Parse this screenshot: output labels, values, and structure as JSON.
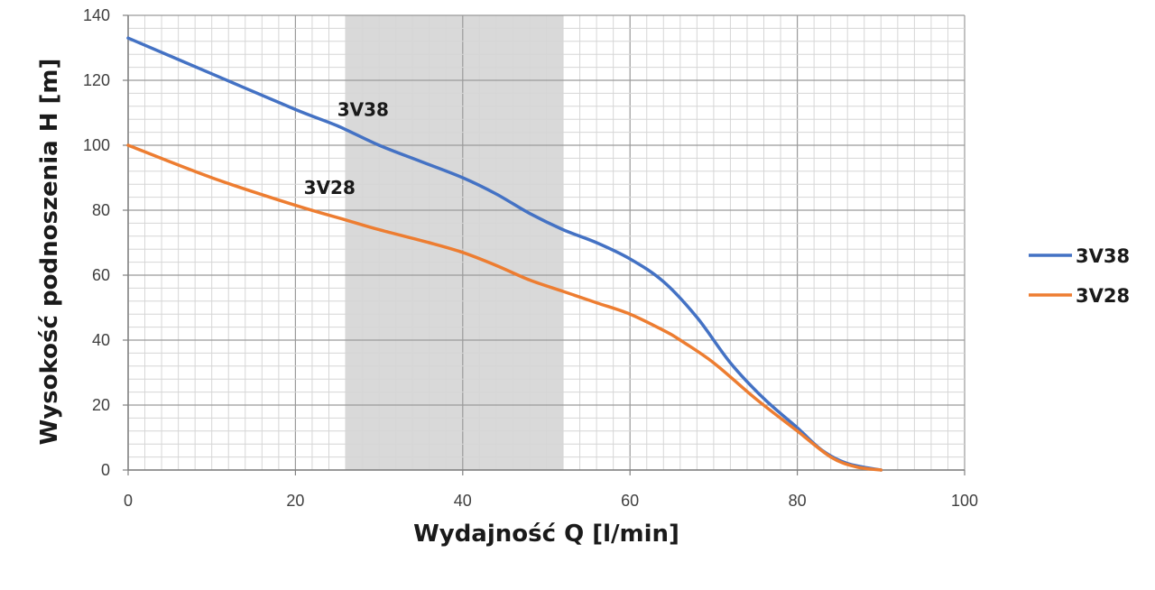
{
  "chart_data": {
    "type": "line",
    "xlabel": "Wydajność Q [l/min]",
    "ylabel": "Wysokość podnoszenia H [m]",
    "xlim": [
      0,
      100
    ],
    "ylim": [
      0,
      140
    ],
    "x_ticks": [
      "0",
      "20",
      "40",
      "60",
      "80",
      "100"
    ],
    "y_ticks": [
      "0",
      "20",
      "40",
      "60",
      "80",
      "100",
      "120",
      "140"
    ],
    "grid": true,
    "legend_position": "right",
    "highlight_band": {
      "x_from": 26,
      "x_to": 52,
      "color": "#d9d9d9"
    },
    "series": [
      {
        "name": "3V38",
        "color": "#4472c4",
        "label_at": [
          25,
          109
        ],
        "points": [
          [
            0,
            133
          ],
          [
            10,
            122
          ],
          [
            20,
            111
          ],
          [
            25,
            106
          ],
          [
            30,
            100
          ],
          [
            35,
            95
          ],
          [
            40,
            90
          ],
          [
            44,
            85
          ],
          [
            48,
            79
          ],
          [
            52,
            74
          ],
          [
            56,
            70
          ],
          [
            60,
            65
          ],
          [
            64,
            58
          ],
          [
            68,
            47
          ],
          [
            72,
            33
          ],
          [
            76,
            22
          ],
          [
            80,
            13
          ],
          [
            83,
            6
          ],
          [
            86,
            2
          ],
          [
            90,
            0
          ]
        ]
      },
      {
        "name": "3V28",
        "color": "#ed7d31",
        "label_at": [
          21,
          85
        ],
        "points": [
          [
            0,
            100
          ],
          [
            10,
            90
          ],
          [
            20,
            81.5
          ],
          [
            26,
            77
          ],
          [
            30,
            74
          ],
          [
            36,
            70
          ],
          [
            40,
            67
          ],
          [
            44,
            63
          ],
          [
            48,
            58.5
          ],
          [
            52,
            55
          ],
          [
            56,
            51.5
          ],
          [
            60,
            48
          ],
          [
            64,
            43
          ],
          [
            66,
            40
          ],
          [
            70,
            33
          ],
          [
            75,
            22
          ],
          [
            80,
            12
          ],
          [
            84,
            4
          ],
          [
            87,
            1
          ],
          [
            90,
            0
          ]
        ]
      }
    ]
  }
}
